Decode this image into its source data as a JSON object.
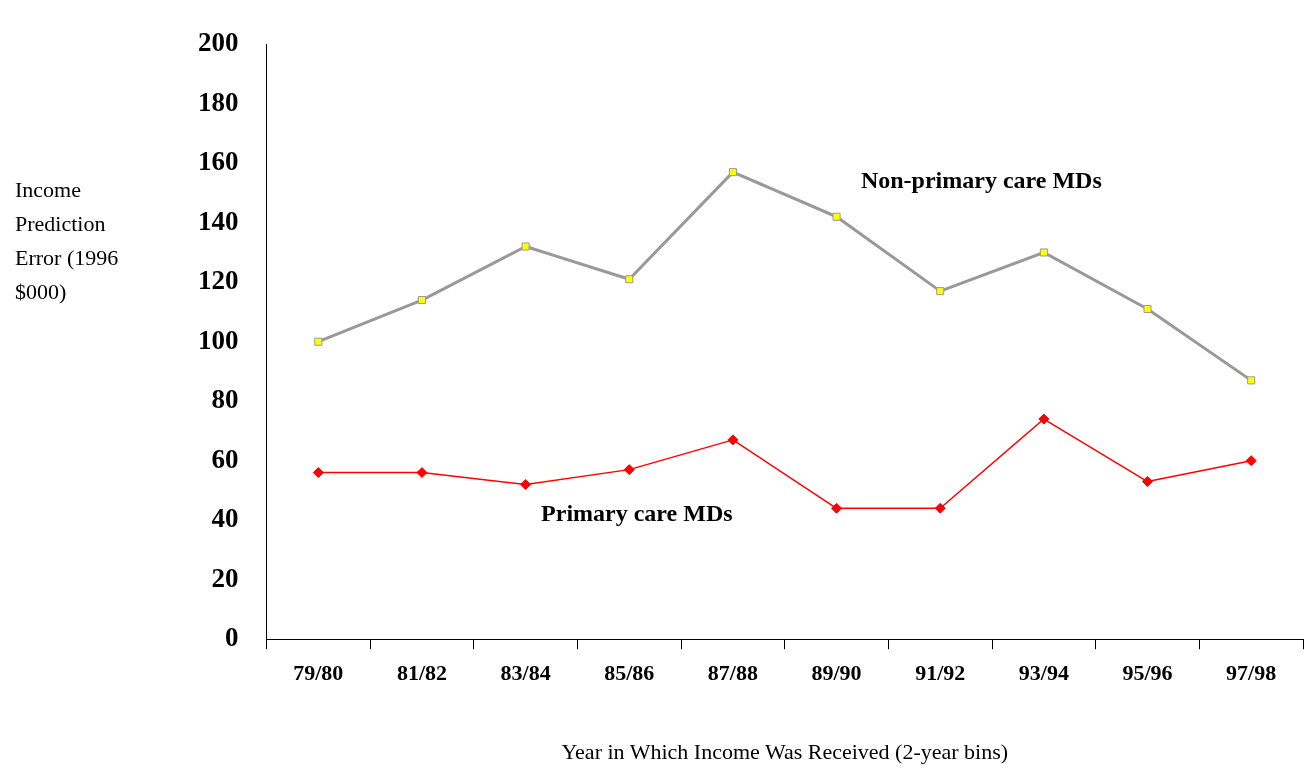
{
  "chart_data": {
    "type": "line",
    "ylabel": "Income Prediction Error (1996 $000)",
    "xlabel": "Year in Which Income Was Received (2-year bins)",
    "categories": [
      "79/80",
      "81/82",
      "83/84",
      "85/86",
      "87/88",
      "89/90",
      "91/92",
      "93/94",
      "95/96",
      "97/98"
    ],
    "ylim": [
      0,
      200
    ],
    "yticks": [
      0,
      20,
      40,
      60,
      80,
      100,
      120,
      140,
      160,
      180,
      200
    ],
    "grid": false,
    "legend": false,
    "series": [
      {
        "name": "Non-primary care MDs",
        "color": "#999999",
        "marker": "square",
        "colors": [
          "#ffff00",
          "#ffff00",
          "#ffff00",
          "#ffff00",
          "#ffff00",
          "#ffff00",
          "#ffff00",
          "#ffff00",
          "#ffff00",
          "#ffff00"
        ],
        "values": [
          100,
          114,
          132,
          121,
          157,
          142,
          117,
          130,
          111,
          87
        ]
      },
      {
        "name": "Primary care MDs",
        "color": "#ff0000",
        "marker": "diamond",
        "values": [
          56,
          56,
          52,
          57,
          67,
          44,
          44,
          74,
          53,
          60
        ]
      }
    ]
  }
}
